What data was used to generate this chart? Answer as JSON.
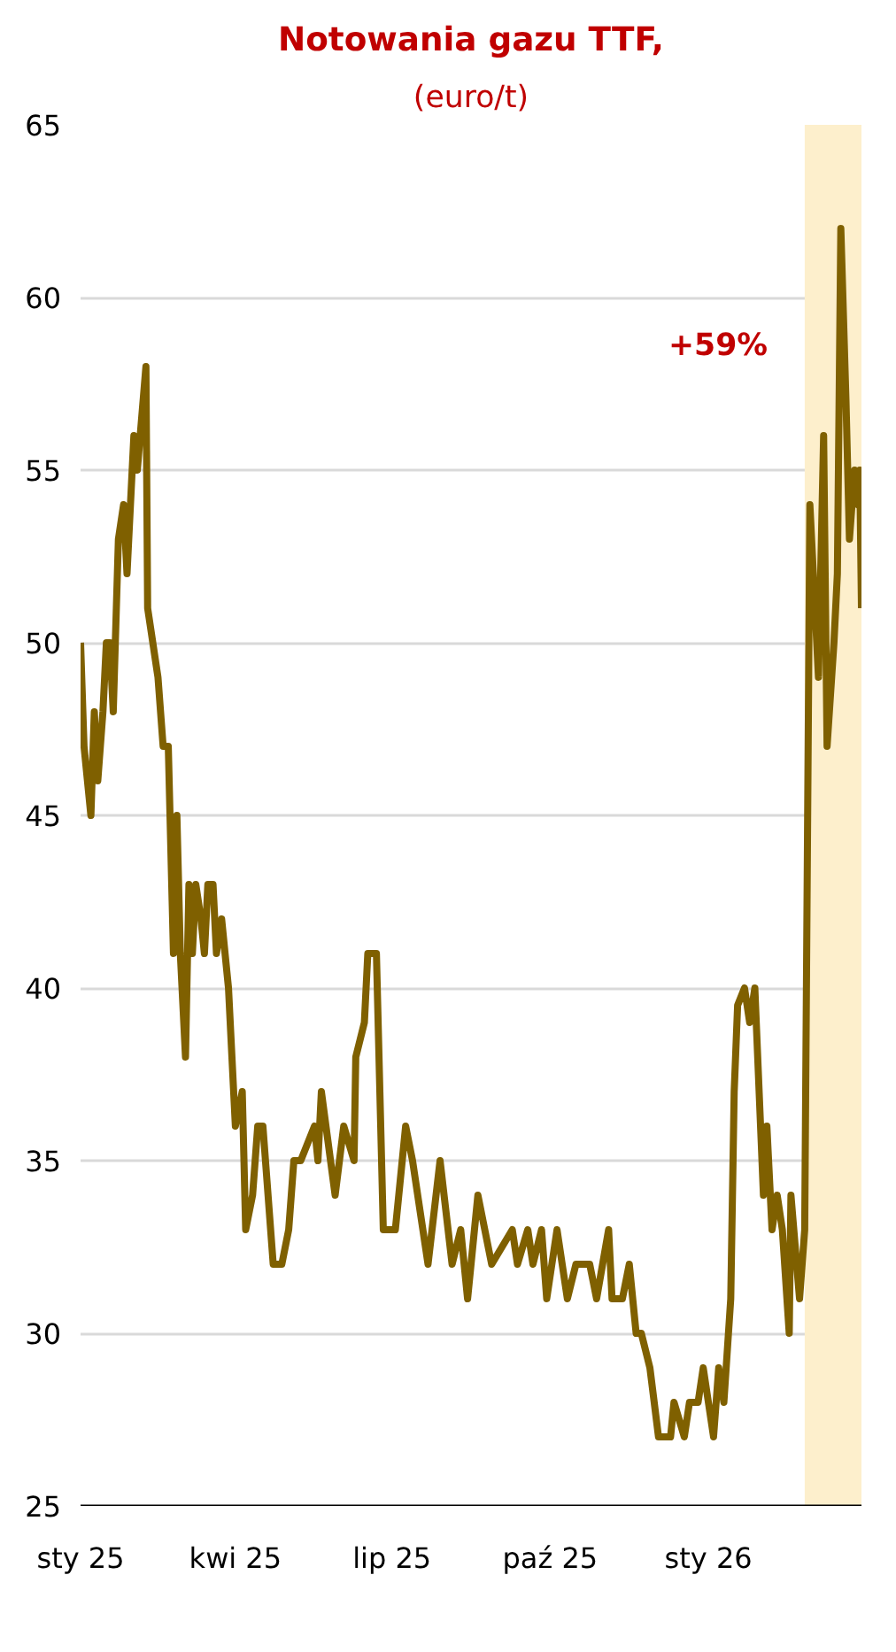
{
  "chart_data": {
    "type": "line",
    "title": "Notowania gazu TTF,",
    "subtitle": "(euro/t)",
    "x": [
      "2025-01-01",
      "2025-01-03",
      "2025-01-07",
      "2025-01-09",
      "2025-01-11",
      "2025-01-14",
      "2025-01-16",
      "2025-01-18",
      "2025-01-20",
      "2025-01-23",
      "2025-01-26",
      "2025-01-28",
      "2025-02-01",
      "2025-02-03",
      "2025-02-08",
      "2025-02-09",
      "2025-02-15",
      "2025-02-18",
      "2025-02-21",
      "2025-02-24",
      "2025-02-26",
      "2025-02-28",
      "2025-03-03",
      "2025-03-05",
      "2025-03-07",
      "2025-03-09",
      "2025-03-12",
      "2025-03-14",
      "2025-03-16",
      "2025-03-19",
      "2025-03-21",
      "2025-03-24",
      "2025-03-28",
      "2025-04-01",
      "2025-04-05",
      "2025-04-07",
      "2025-04-11",
      "2025-04-14",
      "2025-04-17",
      "2025-04-20",
      "2025-04-23",
      "2025-04-28",
      "2025-05-02",
      "2025-05-05",
      "2025-05-09",
      "2025-05-17",
      "2025-05-19",
      "2025-05-21",
      "2025-05-29",
      "2025-06-03",
      "2025-06-09",
      "2025-06-10",
      "2025-06-15",
      "2025-06-17",
      "2025-06-22",
      "2025-06-26",
      "2025-07-03",
      "2025-07-09",
      "2025-07-13",
      "2025-07-22",
      "2025-07-29",
      "2025-08-05",
      "2025-08-10",
      "2025-08-14",
      "2025-08-20",
      "2025-08-28",
      "2025-09-09",
      "2025-09-12",
      "2025-09-18",
      "2025-09-21",
      "2025-09-26",
      "2025-09-29",
      "2025-10-05",
      "2025-10-11",
      "2025-10-16",
      "2025-10-24",
      "2025-10-28",
      "2025-11-04",
      "2025-11-06",
      "2025-11-12",
      "2025-11-16",
      "2025-11-20",
      "2025-11-23",
      "2025-11-28",
      "2025-12-03",
      "2025-12-10",
      "2025-12-12",
      "2025-12-18",
      "2025-12-21",
      "2025-12-26",
      "2025-12-29",
      "2026-01-01",
      "2026-01-04",
      "2026-01-07",
      "2026-01-10",
      "2026-01-14",
      "2026-01-16",
      "2026-01-18",
      "2026-01-22",
      "2026-01-25",
      "2026-01-28",
      "2026-02-02",
      "2026-02-04",
      "2026-02-07",
      "2026-02-10",
      "2026-02-13",
      "2026-02-17",
      "2026-02-18",
      "2026-02-23",
      "2026-02-26",
      "2026-03-01",
      "2026-03-06",
      "2026-03-09",
      "2026-03-11",
      "2026-03-15",
      "2026-03-17",
      "2026-03-19",
      "2026-03-22",
      "2026-03-24",
      "2026-03-27",
      "2026-03-29",
      "2026-03-30",
      "2026-03-31"
    ],
    "series": [
      {
        "color": "#7f6000",
        "values": [
          50,
          47,
          45,
          48,
          46,
          48,
          50,
          50,
          48,
          53,
          54,
          52,
          56,
          55,
          58,
          51,
          49,
          47,
          47,
          41,
          45,
          41,
          38,
          43,
          41,
          43,
          42,
          41,
          43,
          43,
          41,
          42,
          40,
          36,
          37,
          33,
          34,
          36,
          36,
          34,
          32,
          32,
          33,
          35,
          35,
          36,
          35,
          37,
          34,
          36,
          35,
          38,
          39,
          41,
          41,
          33,
          33,
          36,
          35,
          32,
          35,
          32,
          33,
          31,
          34,
          32,
          33,
          32,
          33,
          32,
          33,
          31,
          33,
          31,
          32,
          32,
          31,
          33,
          31,
          31,
          32,
          30,
          30,
          29,
          27,
          27,
          28,
          27,
          28,
          28,
          29,
          28,
          27,
          29,
          28,
          31,
          37,
          39.5,
          40,
          39,
          40,
          34,
          36,
          33,
          34,
          33,
          30,
          34,
          31,
          33,
          54,
          49,
          56,
          47,
          50,
          52,
          62,
          57,
          53,
          55,
          54,
          55,
          51
        ]
      }
    ],
    "xlim": [
      "2025-01-01",
      "2026-03-31"
    ],
    "xticks": [
      {
        "value": "2025-01-01",
        "label": "sty 25"
      },
      {
        "value": "2025-04-01",
        "label": "kwi 25"
      },
      {
        "value": "2025-07-01",
        "label": "lip 25"
      },
      {
        "value": "2025-10-01",
        "label": "paź 25"
      },
      {
        "value": "2026-01-01",
        "label": "sty 26"
      }
    ],
    "ylim": [
      25,
      65
    ],
    "yticks": [
      25,
      30,
      35,
      40,
      45,
      50,
      55,
      60,
      65
    ],
    "bands": [
      {
        "axis": "x",
        "from": "2026-02-26",
        "to": "2026-03-31",
        "color": "#fdefcc"
      }
    ],
    "annotations": [
      "+59%"
    ],
    "grid": "y",
    "marker": "none",
    "line_style": "solid"
  }
}
